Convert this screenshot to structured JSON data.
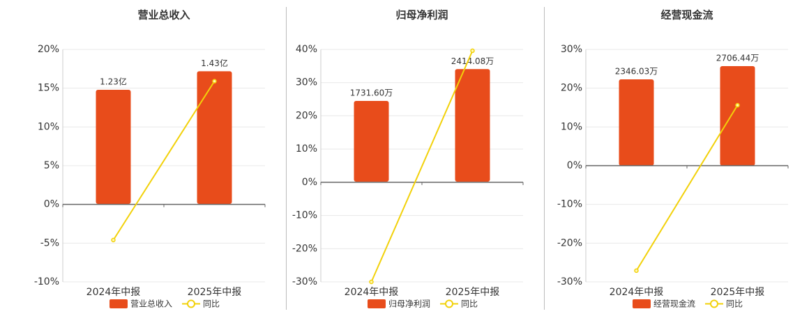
{
  "chart_data": [
    {
      "type": "bar-line",
      "title": "营业总收入",
      "categories": [
        "2024年中报",
        "2025年中报"
      ],
      "series": [
        {
          "name": "营业总收入",
          "type": "bar",
          "axis": "y2",
          "color": "#e84c1b",
          "values": [
            1.23,
            1.43
          ],
          "value_labels": [
            "1.23亿",
            "1.43亿"
          ]
        },
        {
          "name": "同比",
          "type": "line",
          "color": "#f2d10a",
          "values": [
            -4.6,
            15.9
          ]
        }
      ],
      "ylim": [
        -10,
        20
      ],
      "yticks": [
        {
          "value": -10,
          "label": "-10%"
        },
        {
          "value": -5,
          "label": "-5%"
        },
        {
          "value": 0,
          "label": "0%"
        },
        {
          "value": 5,
          "label": "5%"
        },
        {
          "value": 10,
          "label": "10%"
        },
        {
          "value": 15,
          "label": "15%"
        },
        {
          "value": 20,
          "label": "20%"
        }
      ],
      "y2lim": [
        -0.84,
        1.665
      ],
      "grid": true
    },
    {
      "type": "bar-line",
      "title": "归母净利润",
      "categories": [
        "2024年中报",
        "2025年中报"
      ],
      "series": [
        {
          "name": "归母净利润",
          "type": "bar",
          "axis": "y2",
          "color": "#e84c1b",
          "values": [
            1731.6,
            2414.08
          ],
          "value_labels": [
            "1731.60万",
            "2414.08万"
          ]
        },
        {
          "name": "同比",
          "type": "line",
          "color": "#f2d10a",
          "values": [
            -30,
            39.6
          ]
        }
      ],
      "ylim": [
        -30,
        40
      ],
      "yticks": [
        {
          "value": -30,
          "label": "-30%"
        },
        {
          "value": -20,
          "label": "-20%"
        },
        {
          "value": -10,
          "label": "-10%"
        },
        {
          "value": 0,
          "label": "0%"
        },
        {
          "value": 10,
          "label": "10%"
        },
        {
          "value": 20,
          "label": "20%"
        },
        {
          "value": 30,
          "label": "30%"
        },
        {
          "value": 40,
          "label": "40%"
        }
      ],
      "y2lim": [
        -2150,
        2836
      ],
      "grid": true
    },
    {
      "type": "bar-line",
      "title": "经营现金流",
      "categories": [
        "2024年中报",
        "2025年中报"
      ],
      "series": [
        {
          "name": "经营现金流",
          "type": "bar",
          "axis": "y2",
          "color": "#e84c1b",
          "values": [
            2346.03,
            2706.44
          ],
          "value_labels": [
            "2346.03万",
            "2706.44万"
          ]
        },
        {
          "name": "同比",
          "type": "line",
          "color": "#f2d10a",
          "values": [
            -27.1,
            15.6
          ]
        }
      ],
      "ylim": [
        -30,
        30
      ],
      "yticks": [
        {
          "value": -30,
          "label": "-30%"
        },
        {
          "value": -20,
          "label": "-20%"
        },
        {
          "value": -10,
          "label": "-10%"
        },
        {
          "value": 0,
          "label": "0%"
        },
        {
          "value": 10,
          "label": "10%"
        },
        {
          "value": 20,
          "label": "20%"
        },
        {
          "value": 30,
          "label": "30%"
        }
      ],
      "y2lim": [
        -3160,
        3160
      ],
      "grid": true
    }
  ]
}
